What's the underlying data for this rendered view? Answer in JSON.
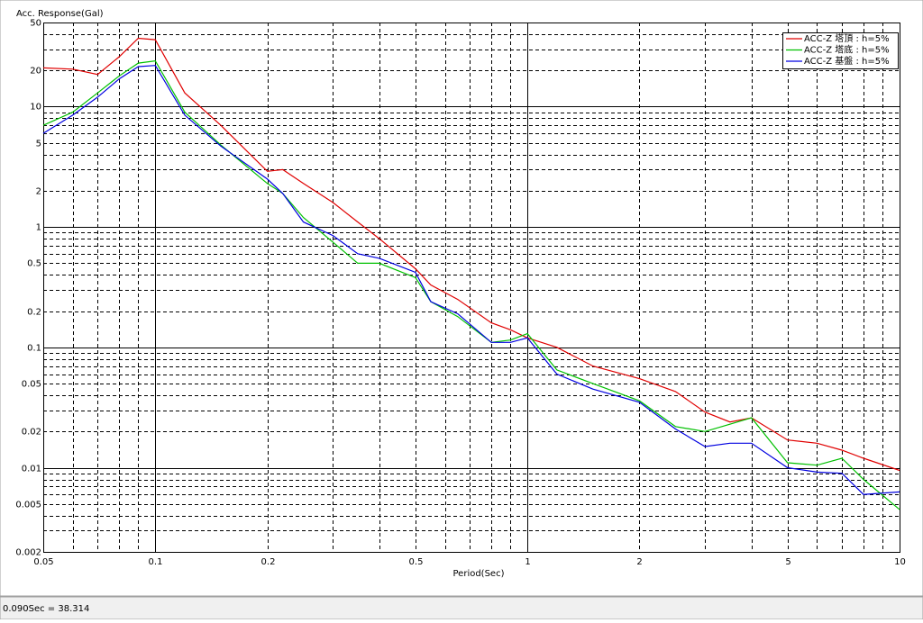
{
  "chart_data": {
    "type": "line",
    "y_axis_label": "Acc. Response(Gal)",
    "x_axis_label": "Period(Sec)",
    "log_x": true,
    "log_y": true,
    "grid": true,
    "legend": "upper right",
    "xlim": [
      0.05,
      10
    ],
    "xticks": [
      0.05,
      0.1,
      0.2,
      0.5,
      1,
      2,
      5,
      10
    ],
    "xminorgrid": [
      0.06,
      0.07,
      0.08,
      0.09,
      0.3,
      0.4,
      0.6,
      0.7,
      0.8,
      0.9,
      3,
      4,
      6,
      7,
      8,
      9
    ],
    "ylim": [
      0.002,
      50
    ],
    "yticks": [
      50,
      20,
      10,
      5,
      2,
      1,
      0.5,
      0.2,
      0.1,
      0.05,
      0.02,
      0.01,
      0.005,
      0.002
    ],
    "yminorgrid": [
      40,
      30,
      9,
      8,
      7,
      6,
      4,
      3,
      0.9,
      0.8,
      0.7,
      0.6,
      0.4,
      0.3,
      0.09,
      0.08,
      0.07,
      0.06,
      0.04,
      0.03,
      0.009,
      0.008,
      0.007,
      0.006,
      0.004,
      0.003
    ],
    "x": [
      0.05,
      0.06,
      0.07,
      0.08,
      0.09,
      0.1,
      0.12,
      0.15,
      0.2,
      0.22,
      0.25,
      0.3,
      0.35,
      0.4,
      0.5,
      0.55,
      0.65,
      0.8,
      0.9,
      1,
      1.2,
      1.5,
      2,
      2.5,
      3,
      3.5,
      4,
      5,
      6,
      7,
      8,
      10
    ],
    "series": [
      {
        "name": "ACC-Z 塔頂 : h=5%",
        "color": "#e00000",
        "values": [
          21,
          20.5,
          18.5,
          26,
          37,
          36,
          13,
          7,
          2.9,
          3.0,
          2.3,
          1.6,
          1.1,
          0.8,
          0.45,
          0.33,
          0.25,
          0.16,
          0.14,
          0.12,
          0.1,
          0.07,
          0.055,
          0.043,
          0.029,
          0.024,
          0.026,
          0.017,
          0.016,
          0.014,
          0.012,
          0.0095
        ]
      },
      {
        "name": "ACC-Z 塔底 : h=5%",
        "color": "#00c000",
        "values": [
          7,
          9,
          13,
          18,
          23,
          24,
          9,
          4.8,
          2.3,
          1.9,
          1.2,
          0.75,
          0.5,
          0.5,
          0.38,
          0.24,
          0.18,
          0.11,
          0.115,
          0.13,
          0.065,
          0.05,
          0.036,
          0.022,
          0.02,
          0.023,
          0.026,
          0.011,
          0.0105,
          0.012,
          0.008,
          0.0045
        ]
      },
      {
        "name": "ACC-Z 基盤 : h=5%",
        "color": "#0000e0",
        "values": [
          6,
          8.5,
          12,
          17,
          21.5,
          22,
          8.5,
          4.7,
          2.5,
          1.9,
          1.1,
          0.85,
          0.6,
          0.55,
          0.42,
          0.24,
          0.19,
          0.11,
          0.11,
          0.12,
          0.06,
          0.045,
          0.035,
          0.021,
          0.015,
          0.016,
          0.016,
          0.01,
          0.0092,
          0.009,
          0.006,
          0.0063
        ]
      }
    ]
  },
  "status_bar": "0.090Sec = 38.314"
}
